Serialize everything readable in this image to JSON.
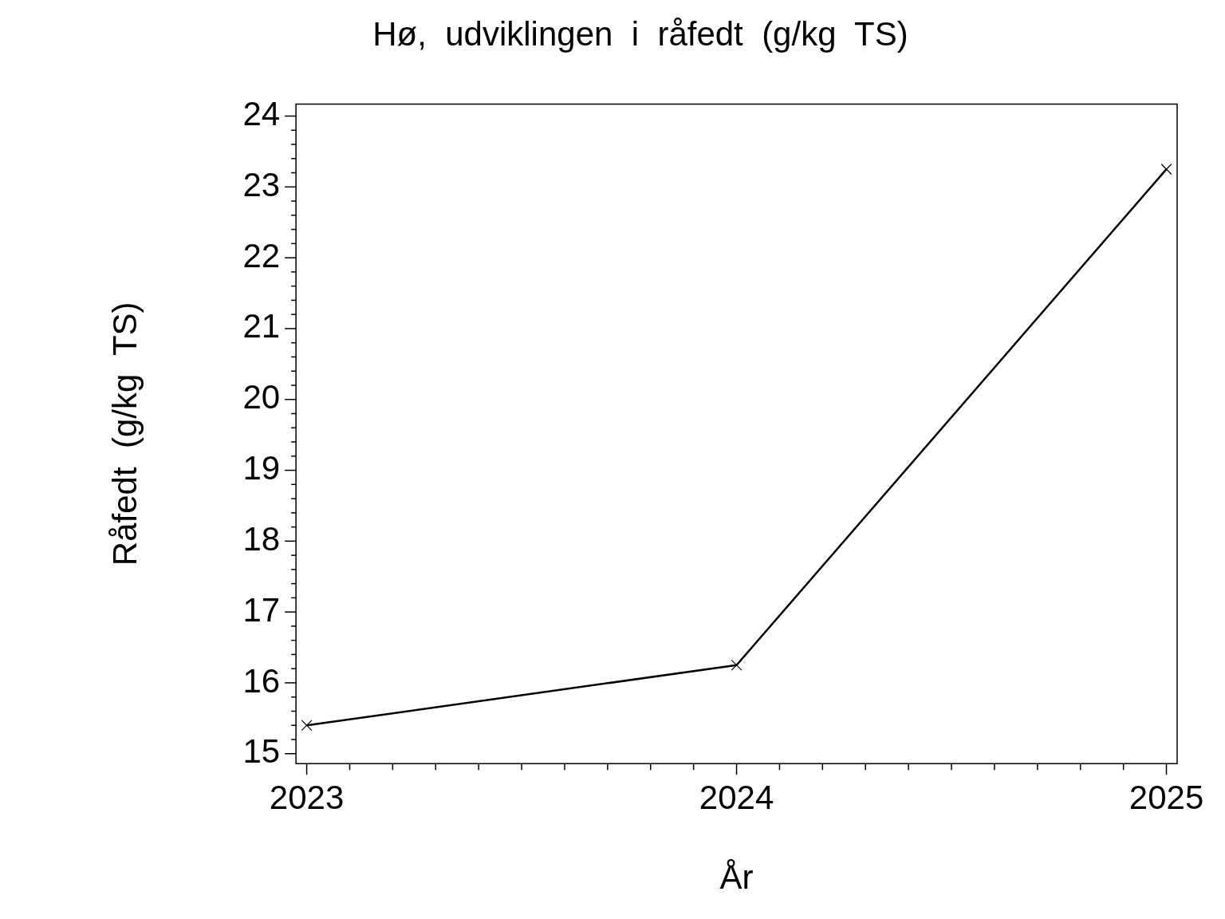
{
  "chart_data": {
    "type": "line",
    "title": "Hø,  udviklingen  i  råfedt  (g/kg  TS)",
    "xlabel": "År",
    "ylabel": "Råfedt  (g/kg  TS)",
    "x": [
      2023,
      2024,
      2025
    ],
    "series": [
      {
        "color": "#000000",
        "values": [
          15.4,
          16.25,
          23.25
        ]
      }
    ],
    "xlim": [
      2022.975,
      2025.025
    ],
    "xticks": [
      2023,
      {
        "value": 2023.1,
        "label": null
      },
      {
        "value": 2023.2,
        "label": null
      },
      {
        "value": 2023.3,
        "label": null
      },
      {
        "value": 2023.4,
        "label": null
      },
      {
        "value": 2023.5,
        "label": null
      },
      {
        "value": 2023.6,
        "label": null
      },
      {
        "value": 2023.7,
        "label": null
      },
      {
        "value": 2023.8,
        "label": null
      },
      {
        "value": 2023.9,
        "label": null
      },
      2024,
      {
        "value": 2024.1,
        "label": null
      },
      {
        "value": 2024.2,
        "label": null
      },
      {
        "value": 2024.3,
        "label": null
      },
      {
        "value": 2024.4,
        "label": null
      },
      {
        "value": 2024.5,
        "label": null
      },
      {
        "value": 2024.6,
        "label": null
      },
      {
        "value": 2024.7,
        "label": null
      },
      {
        "value": 2024.8,
        "label": null
      },
      {
        "value": 2024.9,
        "label": null
      },
      2025
    ],
    "ylim": [
      14.86,
      24.17
    ],
    "yticks": [
      15,
      {
        "value": 15.2,
        "label": null
      },
      {
        "value": 15.4,
        "label": null
      },
      {
        "value": 15.6,
        "label": null
      },
      {
        "value": 15.8,
        "label": null
      },
      16,
      {
        "value": 16.2,
        "label": null
      },
      {
        "value": 16.4,
        "label": null
      },
      {
        "value": 16.6,
        "label": null
      },
      {
        "value": 16.8,
        "label": null
      },
      17,
      {
        "value": 17.2,
        "label": null
      },
      {
        "value": 17.4,
        "label": null
      },
      {
        "value": 17.6,
        "label": null
      },
      {
        "value": 17.8,
        "label": null
      },
      18,
      {
        "value": 18.2,
        "label": null
      },
      {
        "value": 18.4,
        "label": null
      },
      {
        "value": 18.6,
        "label": null
      },
      {
        "value": 18.8,
        "label": null
      },
      19,
      {
        "value": 19.2,
        "label": null
      },
      {
        "value": 19.4,
        "label": null
      },
      {
        "value": 19.6,
        "label": null
      },
      {
        "value": 19.8,
        "label": null
      },
      20,
      {
        "value": 20.2,
        "label": null
      },
      {
        "value": 20.4,
        "label": null
      },
      {
        "value": 20.6,
        "label": null
      },
      {
        "value": 20.8,
        "label": null
      },
      21,
      {
        "value": 21.2,
        "label": null
      },
      {
        "value": 21.4,
        "label": null
      },
      {
        "value": 21.6,
        "label": null
      },
      {
        "value": 21.8,
        "label": null
      },
      22,
      {
        "value": 22.2,
        "label": null
      },
      {
        "value": 22.4,
        "label": null
      },
      {
        "value": 22.6,
        "label": null
      },
      {
        "value": 22.8,
        "label": null
      },
      23,
      {
        "value": 23.2,
        "label": null
      },
      {
        "value": 23.4,
        "label": null
      },
      {
        "value": 23.6,
        "label": null
      },
      {
        "value": 23.8,
        "label": null
      },
      24
    ],
    "grid": false,
    "legend": false,
    "marker": "cross",
    "line_style": "solid"
  }
}
